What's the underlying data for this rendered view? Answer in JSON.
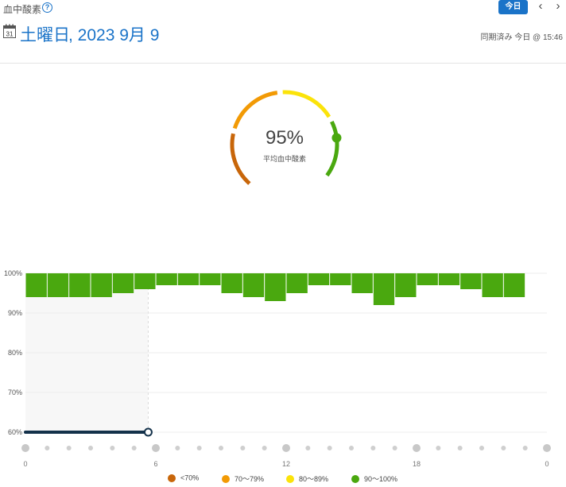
{
  "header": {
    "title": "血中酸素",
    "help_symbol": "?",
    "today_label": "今日",
    "prev_symbol": "‹",
    "next_symbol": "›",
    "calendar_day": "31",
    "date_weekday": "土曜日",
    "date_rest": ", 2023 9月 9",
    "sync_status": "同期済み 今日 @ 15:46"
  },
  "summary": {
    "value": "95%",
    "label": "平均血中酸素",
    "gauge_value_percent": 95,
    "segments": [
      {
        "range": "<70%",
        "color": "#c8660a"
      },
      {
        "range": "70〜79%",
        "color": "#f29a05"
      },
      {
        "range": "80〜89%",
        "color": "#fbe30a"
      },
      {
        "range": "90〜100%",
        "color": "#4aa80f"
      }
    ]
  },
  "chart_data": {
    "type": "bar",
    "ylim": [
      60,
      100
    ],
    "yticks": [
      "60%",
      "70%",
      "80%",
      "90%",
      "100%"
    ],
    "xlim": [
      0,
      24
    ],
    "xticks": [
      "0",
      "6",
      "12",
      "18",
      "0"
    ],
    "bar_color": "#4aa80f",
    "bars": [
      {
        "start": 0,
        "low": 94,
        "high": 100
      },
      {
        "start": 1,
        "low": 94,
        "high": 100
      },
      {
        "start": 2,
        "low": 94,
        "high": 100
      },
      {
        "start": 3,
        "low": 94,
        "high": 100
      },
      {
        "start": 4,
        "low": 95,
        "high": 100
      },
      {
        "start": 5,
        "low": 96,
        "high": 100
      },
      {
        "start": 6,
        "low": 97,
        "high": 100
      },
      {
        "start": 7,
        "low": 97,
        "high": 100
      },
      {
        "start": 8,
        "low": 97,
        "high": 100
      },
      {
        "start": 9,
        "low": 95,
        "high": 100
      },
      {
        "start": 10,
        "low": 94,
        "high": 100
      },
      {
        "start": 11,
        "low": 93,
        "high": 100
      },
      {
        "start": 12,
        "low": 95,
        "high": 100
      },
      {
        "start": 13,
        "low": 97,
        "high": 100
      },
      {
        "start": 14,
        "low": 97,
        "high": 100
      },
      {
        "start": 15,
        "low": 95,
        "high": 100
      },
      {
        "start": 16,
        "low": 92,
        "high": 100
      },
      {
        "start": 17,
        "low": 94,
        "high": 100
      },
      {
        "start": 18,
        "low": 97,
        "high": 100
      },
      {
        "start": 19,
        "low": 97,
        "high": 100
      },
      {
        "start": 20,
        "low": 96,
        "high": 100
      },
      {
        "start": 21,
        "low": 94,
        "high": 100
      },
      {
        "start": 22,
        "low": 94,
        "high": 100
      }
    ],
    "sleep_window": {
      "start": 0,
      "end": 5.65,
      "color": "#13314a",
      "shade": "#f7f7f7"
    }
  },
  "legend": [
    {
      "label": "<70%",
      "color": "#c8660a"
    },
    {
      "label": "70〜79%",
      "color": "#f29a05"
    },
    {
      "label": "80〜89%",
      "color": "#fbe30a"
    },
    {
      "label": "90〜100%",
      "color": "#4aa80f"
    }
  ]
}
